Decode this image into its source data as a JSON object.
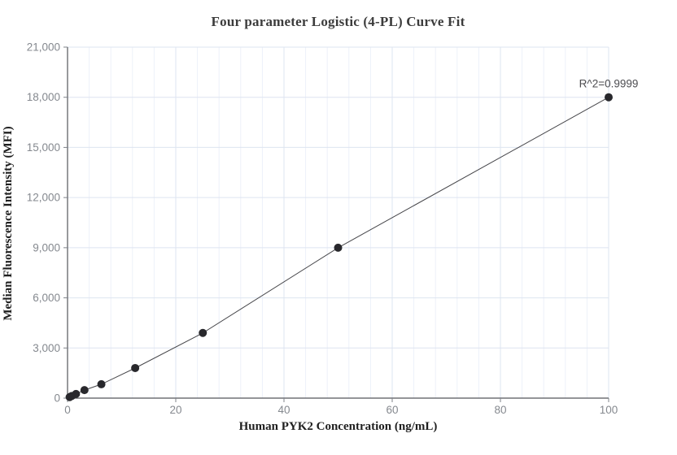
{
  "chart_data": {
    "type": "scatter",
    "title": "Four parameter Logistic (4-PL) Curve Fit",
    "xlabel": "Human PYK2 Concentration (ng/mL)",
    "ylabel": "Median Fluorescence Intensity (MFI)",
    "annotation": "R^2=0.9999",
    "x": [
      0.39,
      0.78,
      1.56,
      3.125,
      6.25,
      12.5,
      25,
      50,
      100
    ],
    "y": [
      60,
      130,
      250,
      480,
      830,
      1800,
      3900,
      9000,
      18000
    ],
    "fit_line_x": [
      0,
      0.39,
      0.78,
      1.56,
      3.125,
      6.25,
      12.5,
      25,
      50,
      100
    ],
    "fit_line_y": [
      10,
      60,
      130,
      250,
      480,
      830,
      1800,
      3900,
      9000,
      18000
    ],
    "xlim": [
      0,
      100
    ],
    "ylim": [
      0,
      21000
    ],
    "x_ticks": [
      0,
      20,
      40,
      60,
      80,
      100
    ],
    "x_tick_labels": [
      "0",
      "20",
      "40",
      "60",
      "80",
      "100"
    ],
    "y_ticks": [
      0,
      3000,
      6000,
      9000,
      12000,
      15000,
      18000,
      21000
    ],
    "y_tick_labels": [
      "0",
      "3,000",
      "6,000",
      "9,000",
      "12,000",
      "15,000",
      "18,000",
      "21,000"
    ],
    "x_minor_step": 4,
    "grid": true,
    "legend": "none",
    "colors": {
      "background": "#ffffff",
      "major_grid": "#dde4f0",
      "minor_grid": "#edf1f9",
      "axis": "#54565b",
      "tick": "#7f8389",
      "tick_label": "#85898f",
      "title": "#3c3c3c",
      "axis_label": "#1f1f1f",
      "point": "#28282c",
      "fit_line": "#46464a",
      "annotation": "#4c4c50"
    }
  }
}
